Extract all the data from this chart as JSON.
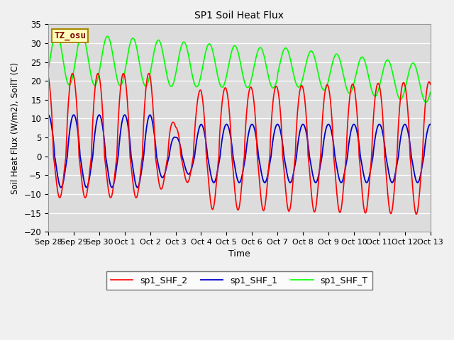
{
  "title": "SP1 Soil Heat Flux",
  "xlabel": "Time",
  "ylabel": "Soil Heat Flux (W/m2), SoilT (C)",
  "ylim": [
    -20,
    35
  ],
  "yticks": [
    -20,
    -15,
    -10,
    -5,
    0,
    5,
    10,
    15,
    20,
    25,
    30,
    35
  ],
  "fig_bg_color": "#f0f0f0",
  "plot_bg_color": "#dcdcdc",
  "line_colors": {
    "shf2": "#ff0000",
    "shf1": "#0000cc",
    "shfT": "#00ff00"
  },
  "legend_labels": [
    "sp1_SHF_2",
    "sp1_SHF_1",
    "sp1_SHF_T"
  ],
  "tz_label": "TZ_osu",
  "xtick_labels": [
    "Sep 28",
    "Sep 29",
    "Sep 30",
    "Oct 1",
    "Oct 2",
    "Oct 3",
    "Oct 4",
    "Oct 5",
    "Oct 6",
    "Oct 7",
    "Oct 8",
    "Oct 9",
    "Oct 10",
    "Oct 11",
    "Oct 12",
    "Oct 13"
  ],
  "n_days": 15
}
